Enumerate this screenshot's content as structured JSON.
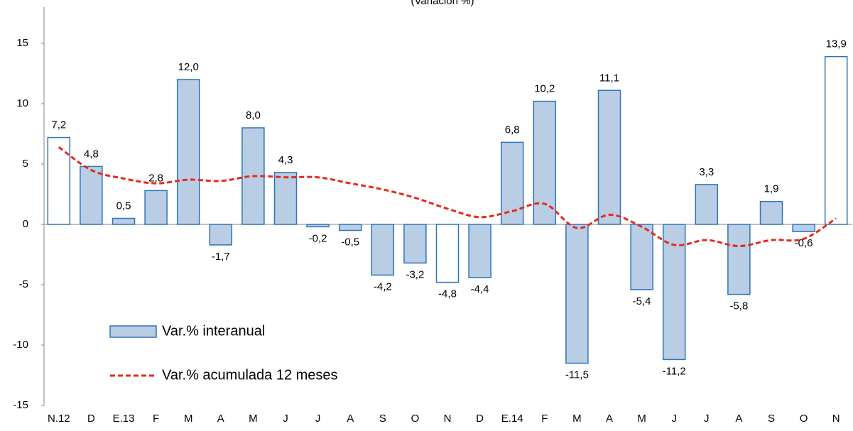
{
  "chart_data": {
    "type": "bar",
    "title": "(Variación %)",
    "categories": [
      "N.12",
      "D",
      "E.13",
      "F",
      "M",
      "A",
      "M",
      "J",
      "J",
      "A",
      "S",
      "O",
      "N",
      "D",
      "E.14",
      "F",
      "M",
      "A",
      "M",
      "J",
      "J",
      "A",
      "S",
      "O",
      "N"
    ],
    "series": [
      {
        "name": "Var.% interanual",
        "type": "bar",
        "color": "#b9cde5",
        "edge_color": "#2e75b6",
        "fill_colors": [
          "#ffffff",
          "#b9cde5",
          "#b9cde5",
          "#b9cde5",
          "#b9cde5",
          "#b9cde5",
          "#b9cde5",
          "#b9cde5",
          "#b9cde5",
          "#b9cde5",
          "#b9cde5",
          "#b9cde5",
          "#ffffff",
          "#b9cde5",
          "#b9cde5",
          "#b9cde5",
          "#b9cde5",
          "#b9cde5",
          "#b9cde5",
          "#b9cde5",
          "#b9cde5",
          "#b9cde5",
          "#b9cde5",
          "#b9cde5",
          "#ffffff"
        ],
        "values": [
          7.2,
          4.8,
          0.5,
          2.8,
          12.0,
          -1.7,
          8.0,
          4.3,
          -0.2,
          -0.5,
          -4.2,
          -3.2,
          -4.8,
          -4.4,
          6.8,
          10.2,
          -11.5,
          11.1,
          -5.4,
          -11.2,
          3.3,
          -5.8,
          1.9,
          -0.6,
          13.9
        ],
        "value_labels": [
          "7,2",
          "4,8",
          "0,5",
          "2,8",
          "12,0",
          "-1,7",
          "8,0",
          "4,3",
          "-0,2",
          "-0,5",
          "-4,2",
          "-3,2",
          "-4,8",
          "-4,4",
          "6,8",
          "10,2",
          "-11,5",
          "11,1",
          "-5,4",
          "-11,2",
          "3,3",
          "-5,8",
          "1,9",
          "-0,6",
          "13,9"
        ]
      },
      {
        "name": "Var.% acumulada 12 meses",
        "type": "line",
        "color": "#e8291c",
        "dashed": true,
        "values": [
          6.4,
          4.5,
          3.8,
          3.4,
          3.7,
          3.6,
          4.0,
          3.9,
          3.9,
          3.4,
          2.9,
          2.2,
          1.3,
          0.6,
          1.1,
          1.7,
          -0.3,
          0.8,
          -0.2,
          -1.7,
          -1.3,
          -1.8,
          -1.3,
          -1.2,
          0.5
        ]
      }
    ],
    "ylim": [
      -15,
      18
    ],
    "yticks": [
      -15,
      -10,
      -5,
      0,
      5,
      10,
      15
    ],
    "grid": false
  }
}
